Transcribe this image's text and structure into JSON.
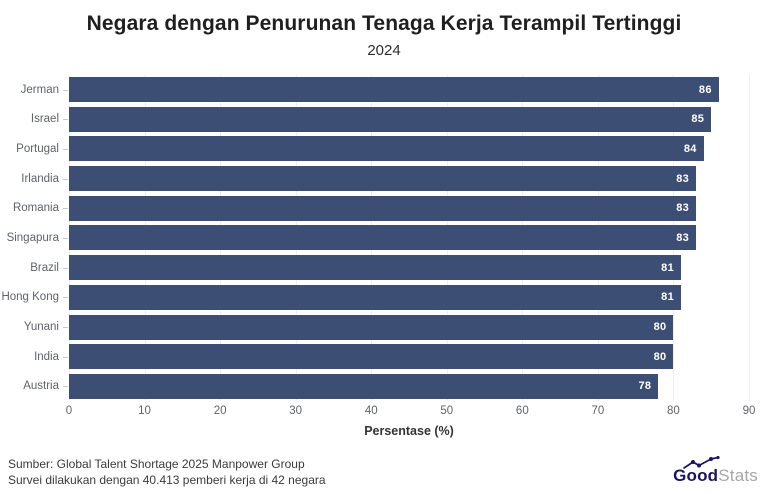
{
  "chart_data": {
    "type": "bar",
    "orientation": "horizontal",
    "title": "Negara dengan Penurunan Tenaga Kerja Terampil Tertinggi",
    "subtitle": "2024",
    "categories": [
      "Jerman",
      "Israel",
      "Portugal",
      "Irlandia",
      "Romania",
      "Singapura",
      "Brazil",
      "Hong Kong",
      "Yunani",
      "India",
      "Austria"
    ],
    "values": [
      86,
      85,
      84,
      83,
      83,
      83,
      81,
      81,
      80,
      80,
      78
    ],
    "xlabel": "Persentase (%)",
    "xlim": [
      0,
      90
    ],
    "xticks": [
      0,
      10,
      20,
      30,
      40,
      50,
      60,
      70,
      80,
      90
    ],
    "grid": true,
    "legend": "none",
    "bar_color": "#3d4e74",
    "value_label_color": "#ffffff"
  },
  "footer": {
    "source_line1": "Sumber: Global Talent Shortage 2025 Manpower Group",
    "source_line2": "Survei dilakukan dengan 40.413 pemberi kerja di 42 negara",
    "logo": {
      "part1": "Good",
      "part2": "Stats",
      "navy": "#1b1464",
      "gray": "#a6a6a6"
    }
  }
}
